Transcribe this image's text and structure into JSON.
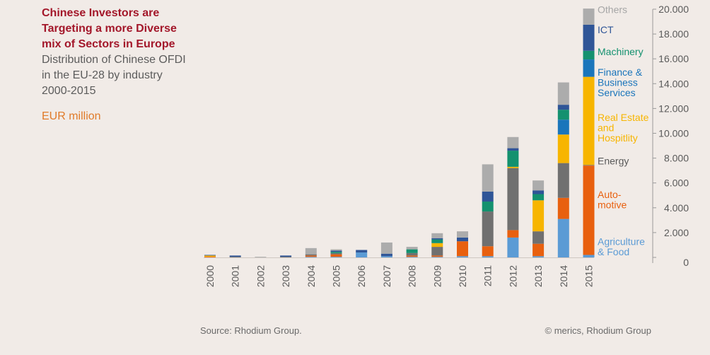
{
  "header": {
    "title": "Chinese Investors are Targeting a more Diverse mix of Sectors in Europe",
    "subtitle": "Distribution of Chinese OFDI in the EU-28 by industry 2000-2015",
    "unit": "EUR million"
  },
  "footer": {
    "source": "Source: Rhodium Group.",
    "copyright": "© merics, Rhodium Group"
  },
  "chart_data": {
    "type": "bar",
    "stacked": true,
    "categories": [
      "2000",
      "2001",
      "2002",
      "2003",
      "2004",
      "2005",
      "2006",
      "2007",
      "2008",
      "2009",
      "2010",
      "2011",
      "2012",
      "2013",
      "2014",
      "2015"
    ],
    "ylim": [
      0,
      20000
    ],
    "yticks": [
      0,
      2000,
      4000,
      6000,
      8000,
      10000,
      12000,
      14000,
      16000,
      18000,
      20000
    ],
    "ytick_labels": [
      "0",
      "2.000",
      "4.000",
      "6.000",
      "8.000",
      "10.000",
      "12.000",
      "14.000",
      "16.000",
      "18.000",
      "20.000"
    ],
    "grid": false,
    "legend_position": "right",
    "series": [
      {
        "name": "Agriculture & Food",
        "color": "#5b9bd5",
        "values": [
          0,
          0,
          0,
          0,
          50,
          50,
          400,
          100,
          50,
          50,
          100,
          100,
          1600,
          100,
          3100,
          200
        ]
      },
      {
        "name": "Auto-motive",
        "color": "#e8600f",
        "values": [
          50,
          0,
          0,
          0,
          100,
          200,
          0,
          0,
          100,
          100,
          1200,
          800,
          600,
          1000,
          1700,
          7200
        ]
      },
      {
        "name": "Energy",
        "color": "#707070",
        "values": [
          0,
          50,
          0,
          50,
          100,
          100,
          0,
          0,
          200,
          700,
          0,
          2800,
          5000,
          1000,
          2800,
          50
        ]
      },
      {
        "name": "Real Estate and Hospitlity",
        "color": "#f7b500",
        "values": [
          100,
          0,
          0,
          0,
          0,
          0,
          0,
          0,
          0,
          300,
          0,
          0,
          100,
          2500,
          2300,
          7100
        ]
      },
      {
        "name": "Finance & Business Services",
        "color": "#1a75bb",
        "values": [
          0,
          0,
          0,
          0,
          0,
          0,
          0,
          0,
          0,
          0,
          0,
          0,
          0,
          0,
          1200,
          1400
        ]
      },
      {
        "name": "Machinery",
        "color": "#14916f",
        "values": [
          0,
          0,
          0,
          0,
          0,
          100,
          0,
          0,
          300,
          300,
          0,
          800,
          1300,
          500,
          800,
          700
        ]
      },
      {
        "name": "ICT",
        "color": "#2f5597",
        "values": [
          50,
          100,
          0,
          100,
          0,
          100,
          200,
          200,
          0,
          100,
          300,
          800,
          200,
          300,
          400,
          2100
        ]
      },
      {
        "name": "Others",
        "color": "#acacac",
        "values": [
          0,
          0,
          50,
          0,
          500,
          100,
          0,
          900,
          200,
          400,
          500,
          2200,
          900,
          800,
          1800,
          1300
        ]
      }
    ],
    "legend_labels": [
      {
        "series": "Others",
        "lines": [
          "Others"
        ],
        "color": "#a6a6a6",
        "anchor_value": 19700
      },
      {
        "series": "ICT",
        "lines": [
          "ICT"
        ],
        "color": "#2f5597",
        "anchor_value": 18050
      },
      {
        "series": "Machinery",
        "lines": [
          "Machinery"
        ],
        "color": "#14916f",
        "anchor_value": 16300
      },
      {
        "series": "Finance & Business Services",
        "lines": [
          "Finance &",
          "Business",
          "Services"
        ],
        "color": "#1a75bb",
        "anchor_value": 14650
      },
      {
        "series": "Real Estate and Hospitlity",
        "lines": [
          "Real Estate",
          "and",
          "Hospitlity"
        ],
        "color": "#f7b500",
        "anchor_value": 11000
      },
      {
        "series": "Energy",
        "lines": [
          "Energy"
        ],
        "color": "#5a5a5a",
        "anchor_value": 7500
      },
      {
        "series": "Auto-motive",
        "lines": [
          "Auto-",
          "motive"
        ],
        "color": "#e8600f",
        "anchor_value": 4800
      },
      {
        "series": "Agriculture & Food",
        "lines": [
          "Agriculture",
          "& Food"
        ],
        "color": "#5b9bd5",
        "anchor_value": 1000
      }
    ]
  }
}
